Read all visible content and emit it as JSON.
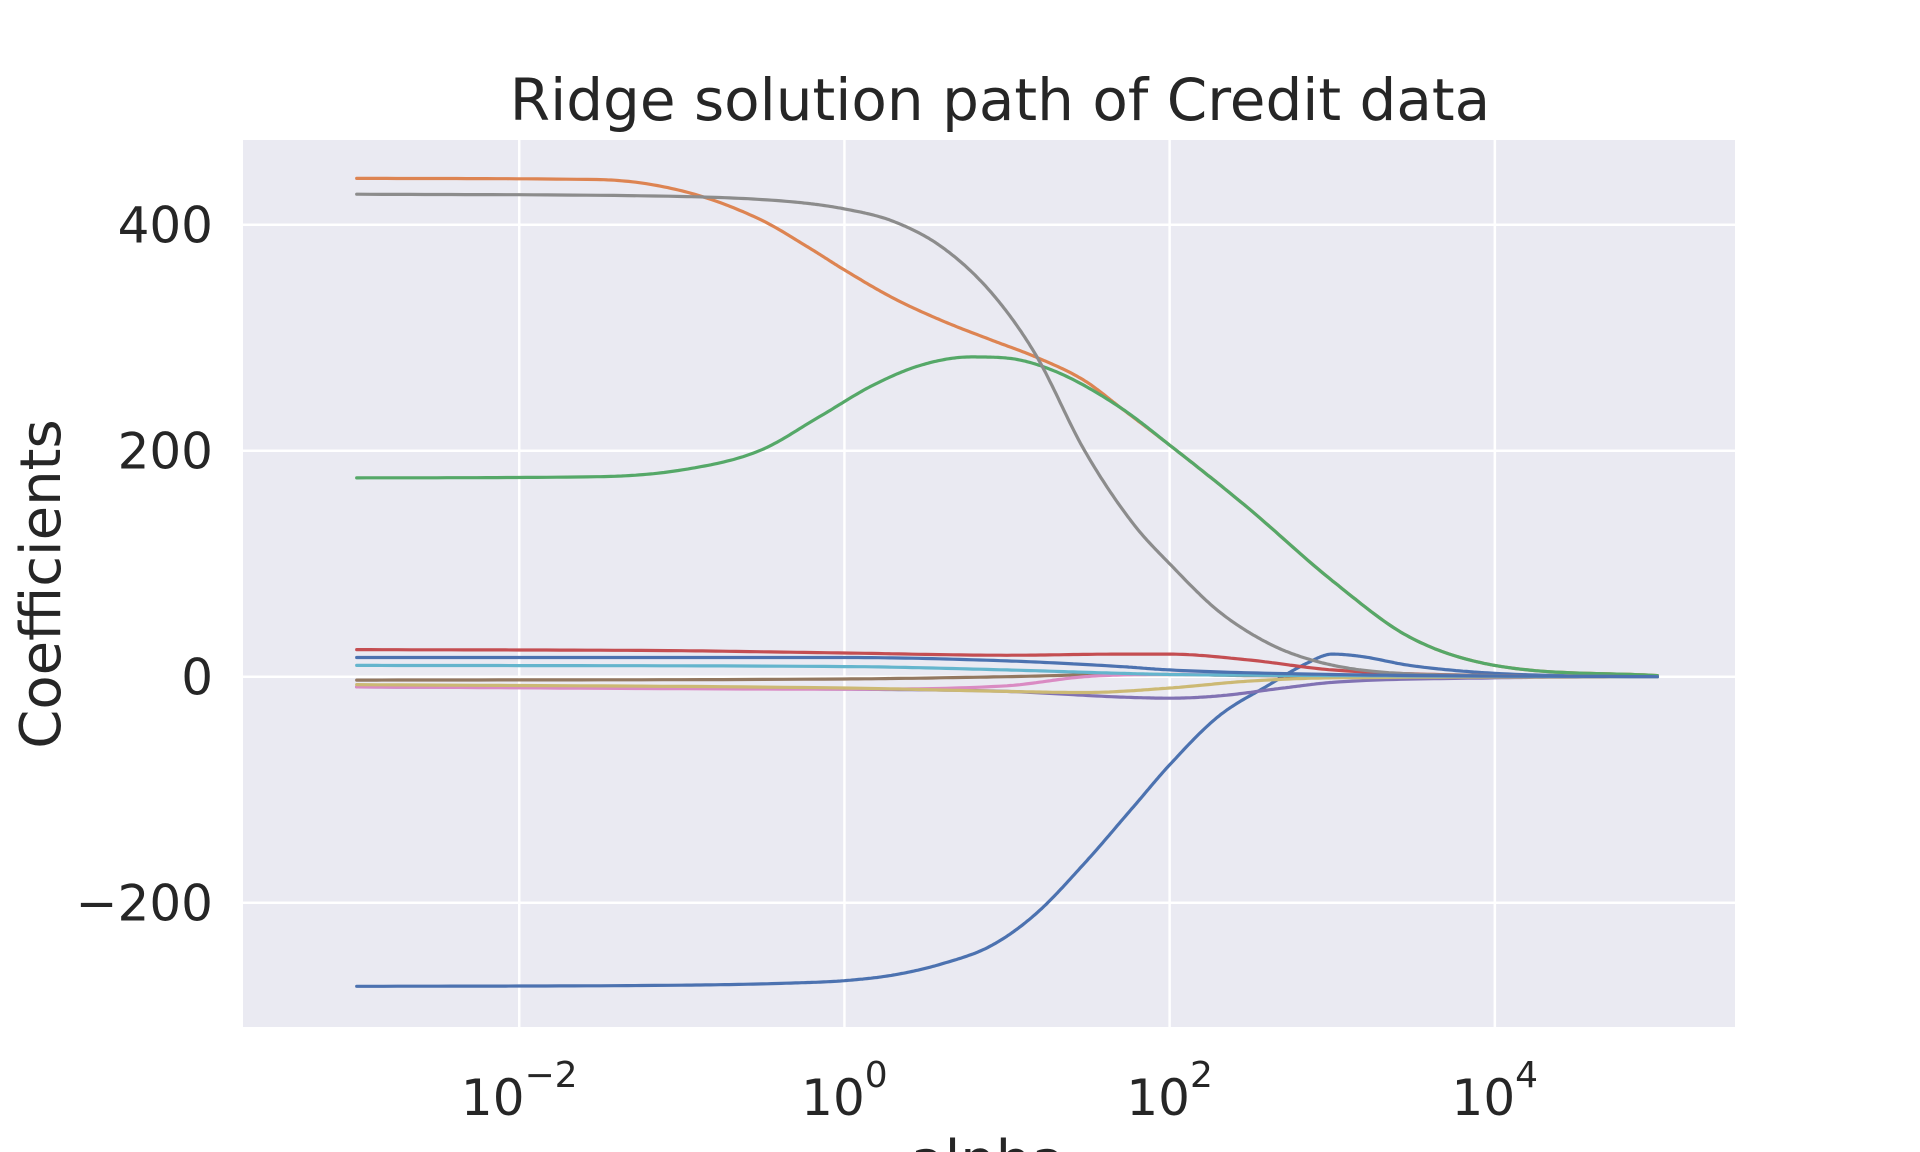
{
  "chart_data": {
    "type": "line",
    "title": "Ridge solution path of Credit data",
    "xlabel": "alpha",
    "ylabel": "Coefficients",
    "xscale": "log",
    "xlim": [
      0.0002,
      300000
    ],
    "ylim": [
      -310,
      475
    ],
    "xticks": [
      {
        "value": 0.01,
        "base": "10",
        "exp": "−2"
      },
      {
        "value": 1,
        "base": "10",
        "exp": "0"
      },
      {
        "value": 100,
        "base": "10",
        "exp": "2"
      },
      {
        "value": 10000,
        "base": "10",
        "exp": "4"
      }
    ],
    "yticks": [
      {
        "value": -200,
        "label": "−200"
      },
      {
        "value": 0,
        "label": "0"
      },
      {
        "value": 200,
        "label": "200"
      },
      {
        "value": 400,
        "label": "400"
      }
    ],
    "grid": true,
    "background": "#eaeaf2",
    "series": [
      {
        "color": "#4c72b0",
        "points": [
          [
            0.001,
            -274
          ],
          [
            0.1,
            -273
          ],
          [
            0.5,
            -271
          ],
          [
            1,
            -269
          ],
          [
            2,
            -264
          ],
          [
            4,
            -254
          ],
          [
            8,
            -238
          ],
          [
            15,
            -210
          ],
          [
            30,
            -165
          ],
          [
            60,
            -115
          ],
          [
            100,
            -78
          ],
          [
            200,
            -35
          ],
          [
            400,
            -8
          ],
          [
            700,
            12
          ],
          [
            1000,
            20
          ],
          [
            1500,
            18
          ],
          [
            3000,
            10
          ],
          [
            10000,
            3
          ],
          [
            100000,
            0
          ]
        ]
      },
      {
        "color": "#dd8452",
        "points": [
          [
            0.001,
            441
          ],
          [
            0.03,
            440
          ],
          [
            0.1,
            430
          ],
          [
            0.3,
            405
          ],
          [
            0.6,
            380
          ],
          [
            1,
            360
          ],
          [
            2,
            335
          ],
          [
            4,
            315
          ],
          [
            8,
            298
          ],
          [
            15,
            283
          ],
          [
            30,
            262
          ],
          [
            50,
            238
          ],
          [
            100,
            205
          ],
          [
            300,
            150
          ],
          [
            1000,
            85
          ],
          [
            3000,
            35
          ],
          [
            10000,
            10
          ],
          [
            100000,
            1
          ]
        ]
      },
      {
        "color": "#55a868",
        "points": [
          [
            0.001,
            176
          ],
          [
            0.03,
            177
          ],
          [
            0.1,
            183
          ],
          [
            0.3,
            200
          ],
          [
            0.7,
            230
          ],
          [
            1.5,
            258
          ],
          [
            3,
            276
          ],
          [
            6,
            283
          ],
          [
            10,
            282
          ],
          [
            20,
            270
          ],
          [
            50,
            238
          ],
          [
            100,
            205
          ],
          [
            300,
            150
          ],
          [
            1000,
            85
          ],
          [
            3000,
            35
          ],
          [
            10000,
            10
          ],
          [
            100000,
            1
          ]
        ]
      },
      {
        "color": "#c44e52",
        "points": [
          [
            0.001,
            24
          ],
          [
            0.1,
            23
          ],
          [
            1,
            21
          ],
          [
            10,
            19
          ],
          [
            50,
            20
          ],
          [
            100,
            20
          ],
          [
            300,
            15
          ],
          [
            1000,
            6
          ],
          [
            10000,
            1
          ],
          [
            100000,
            0
          ]
        ]
      },
      {
        "color": "#8172b3",
        "points": [
          [
            0.001,
            -9
          ],
          [
            1,
            -11
          ],
          [
            10,
            -13
          ],
          [
            50,
            -18
          ],
          [
            100,
            -19
          ],
          [
            200,
            -17
          ],
          [
            500,
            -10
          ],
          [
            1000,
            -5
          ],
          [
            10000,
            -1
          ],
          [
            100000,
            0
          ]
        ]
      },
      {
        "color": "#937860",
        "points": [
          [
            0.001,
            -3
          ],
          [
            1,
            -2
          ],
          [
            10,
            0
          ],
          [
            50,
            2
          ],
          [
            100,
            2
          ],
          [
            300,
            1
          ],
          [
            10000,
            0
          ],
          [
            100000,
            0
          ]
        ]
      },
      {
        "color": "#da8bc3",
        "points": [
          [
            0.001,
            -9
          ],
          [
            1,
            -11
          ],
          [
            10,
            -8
          ],
          [
            30,
            0
          ],
          [
            100,
            2
          ],
          [
            1000,
            1
          ],
          [
            100000,
            0
          ]
        ]
      },
      {
        "color": "#8c8c8c",
        "points": [
          [
            0.001,
            427
          ],
          [
            0.1,
            425
          ],
          [
            0.5,
            420
          ],
          [
            1,
            414
          ],
          [
            2,
            403
          ],
          [
            4,
            380
          ],
          [
            8,
            340
          ],
          [
            15,
            285
          ],
          [
            30,
            200
          ],
          [
            60,
            135
          ],
          [
            100,
            100
          ],
          [
            200,
            58
          ],
          [
            400,
            30
          ],
          [
            700,
            16
          ],
          [
            1500,
            6
          ],
          [
            10000,
            1
          ],
          [
            100000,
            0
          ]
        ]
      },
      {
        "color": "#ccb974",
        "points": [
          [
            0.001,
            -7
          ],
          [
            1,
            -10
          ],
          [
            10,
            -13
          ],
          [
            30,
            -14
          ],
          [
            100,
            -10
          ],
          [
            300,
            -4
          ],
          [
            1000,
            -1
          ],
          [
            100000,
            0
          ]
        ]
      },
      {
        "color": "#64b5cd",
        "points": [
          [
            0.001,
            10
          ],
          [
            1,
            9
          ],
          [
            10,
            6
          ],
          [
            50,
            3
          ],
          [
            100,
            2
          ],
          [
            1000,
            1
          ],
          [
            100000,
            0
          ]
        ]
      },
      {
        "color": "#4c72b0",
        "points": [
          [
            0.001,
            17
          ],
          [
            1,
            17
          ],
          [
            10,
            14
          ],
          [
            50,
            9
          ],
          [
            100,
            6
          ],
          [
            1000,
            2
          ],
          [
            100000,
            0
          ]
        ]
      }
    ]
  }
}
